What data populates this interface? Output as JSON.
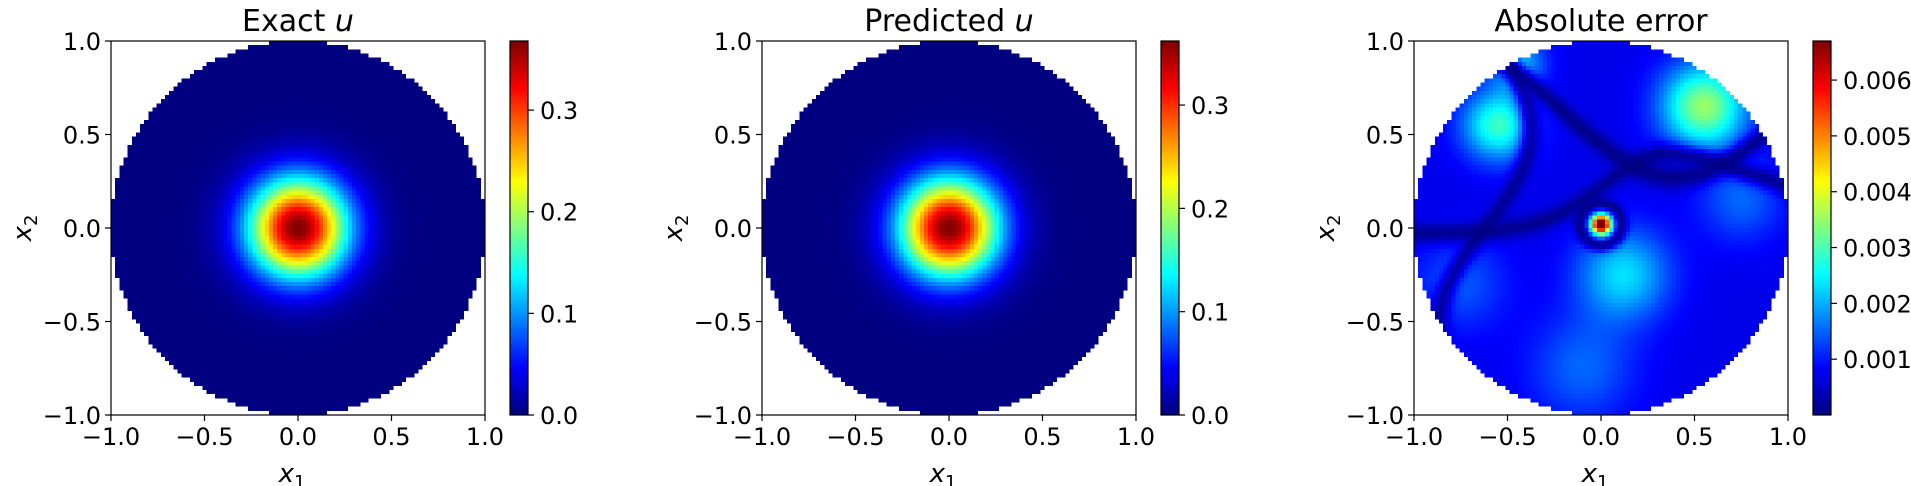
{
  "chart_data": [
    {
      "type": "heatmap",
      "title": "Exact u",
      "title_text": "Exact",
      "title_var": "u",
      "xlabel": "x",
      "xlabel_sub": "1",
      "ylabel": "x",
      "ylabel_sub": "2",
      "xlim": [
        -1.0,
        1.0
      ],
      "ylim": [
        -1.0,
        1.0
      ],
      "xticks": [
        "−1.0",
        "−0.5",
        "0.0",
        "0.5",
        "1.0"
      ],
      "yticks": [
        "−1.0",
        "−0.5",
        "0.0",
        "0.5",
        "1.0"
      ],
      "domain": "unit disk",
      "colormap": "jet",
      "field": {
        "kind": "radial_peak",
        "center": [
          0.0,
          0.0
        ],
        "peak": 0.368
      },
      "colorbar": {
        "min": 0.0,
        "max": 0.368,
        "ticks": [
          0.0,
          0.1,
          0.2,
          0.3
        ],
        "tick_labels": [
          "0.0",
          "0.1",
          "0.2",
          "0.3"
        ]
      }
    },
    {
      "type": "heatmap",
      "title": "Predicted u",
      "title_text": "Predicted",
      "title_var": "u",
      "xlabel": "x",
      "xlabel_sub": "1",
      "ylabel": "x",
      "ylabel_sub": "2",
      "xlim": [
        -1.0,
        1.0
      ],
      "ylim": [
        -1.0,
        1.0
      ],
      "xticks": [
        "−1.0",
        "−0.5",
        "0.0",
        "0.5",
        "1.0"
      ],
      "yticks": [
        "−1.0",
        "−0.5",
        "0.0",
        "0.5",
        "1.0"
      ],
      "domain": "unit disk",
      "colormap": "jet",
      "field": {
        "kind": "radial_peak",
        "center": [
          0.0,
          0.0
        ],
        "peak": 0.362
      },
      "colorbar": {
        "min": 0.0,
        "max": 0.362,
        "ticks": [
          0.0,
          0.1,
          0.2,
          0.3
        ],
        "tick_labels": [
          "0.0",
          "0.1",
          "0.2",
          "0.3"
        ]
      }
    },
    {
      "type": "heatmap",
      "title": "Absolute error",
      "title_text": "Absolute error",
      "title_var": "",
      "xlabel": "x",
      "xlabel_sub": "1",
      "ylabel": "x",
      "ylabel_sub": "2",
      "xlim": [
        -1.0,
        1.0
      ],
      "ylim": [
        -1.0,
        1.0
      ],
      "xticks": [
        "−1.0",
        "−0.5",
        "0.0",
        "0.5",
        "1.0"
      ],
      "yticks": [
        "−1.0",
        "−0.5",
        "0.0",
        "0.5",
        "1.0"
      ],
      "domain": "unit disk",
      "colormap": "jet",
      "field": {
        "kind": "error",
        "hotspot": [
          0.0,
          0.0
        ],
        "high_regions": [
          [
            -0.55,
            0.55
          ],
          [
            0.55,
            0.65
          ],
          [
            -0.45,
            0.88
          ],
          [
            0.1,
            -0.25
          ]
        ]
      },
      "colorbar": {
        "min": 0.0,
        "max": 0.0067,
        "ticks": [
          0.001,
          0.002,
          0.003,
          0.004,
          0.005,
          0.006
        ],
        "tick_labels": [
          "0.001",
          "0.002",
          "0.003",
          "0.004",
          "0.005",
          "0.006"
        ]
      }
    }
  ]
}
